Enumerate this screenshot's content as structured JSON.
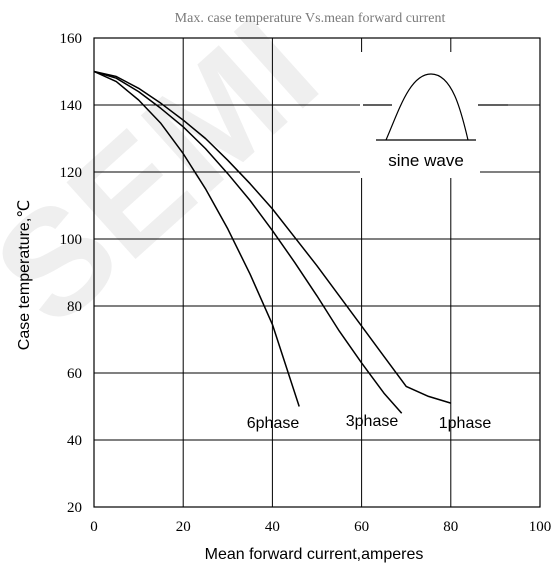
{
  "chart_data": {
    "type": "line",
    "title": "Max. case temperature  Vs.mean  forward current",
    "xlabel": "Mean forward  current,amperes",
    "ylabel": "Case temperature,℃",
    "xlim": [
      0,
      100
    ],
    "ylim": [
      20,
      160
    ],
    "xticks": [
      0,
      20,
      40,
      60,
      80,
      100
    ],
    "yticks": [
      20,
      40,
      60,
      80,
      100,
      120,
      140,
      160
    ],
    "grid": true,
    "series": [
      {
        "name": "1phase",
        "x": [
          0,
          5,
          10,
          15,
          20,
          25,
          30,
          35,
          40,
          45,
          50,
          55,
          60,
          65,
          70,
          75,
          80
        ],
        "y": [
          150,
          148.5,
          145,
          140.5,
          135.5,
          130,
          123.5,
          116.5,
          109,
          100.5,
          92,
          83,
          74,
          65,
          56,
          53,
          51
        ]
      },
      {
        "name": "3phase",
        "x": [
          0,
          5,
          10,
          15,
          20,
          25,
          30,
          35,
          40,
          45,
          50,
          55,
          60,
          65,
          69
        ],
        "y": [
          150,
          148,
          144,
          139,
          133.5,
          127,
          119.5,
          111.5,
          102.5,
          93,
          83,
          72.5,
          63,
          54,
          48
        ]
      },
      {
        "name": "6phase",
        "x": [
          0,
          5,
          10,
          15,
          20,
          25,
          30,
          35,
          40,
          46
        ],
        "y": [
          150,
          147,
          141.5,
          134.5,
          125.5,
          115,
          103,
          89.5,
          74.5,
          50
        ]
      }
    ],
    "inset": {
      "label": "sine wave"
    },
    "watermark": "SEMI"
  }
}
